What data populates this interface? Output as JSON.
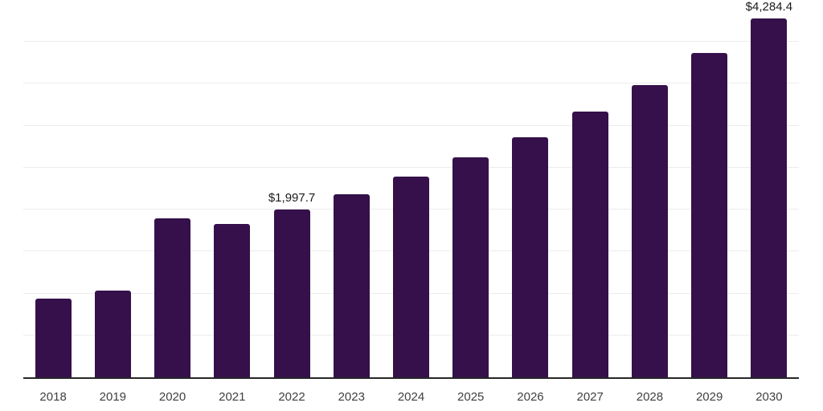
{
  "page": {
    "background": "#ffffff"
  },
  "chart_data": {
    "type": "bar",
    "categories": [
      "2018",
      "2019",
      "2020",
      "2021",
      "2022",
      "2023",
      "2024",
      "2025",
      "2026",
      "2027",
      "2028",
      "2029",
      "2030"
    ],
    "values": [
      940,
      1030,
      1895,
      1830,
      1997.7,
      2180,
      2390,
      2620,
      2860,
      3165,
      3490,
      3865,
      4284.4
    ],
    "data_labels": [
      null,
      null,
      null,
      null,
      "$1,997.7",
      null,
      null,
      null,
      null,
      null,
      null,
      null,
      "$4,284.4"
    ],
    "title": "",
    "xlabel": "",
    "ylabel": "",
    "ylim": [
      0,
      4500
    ],
    "grid_step": 500,
    "grid": true,
    "legend_position": "none",
    "colors": {
      "bar": "#35104B",
      "gridline": "#ececec",
      "axis_line": "#262626",
      "tick_label": "#404040",
      "data_label": "#1a1a1a"
    }
  }
}
